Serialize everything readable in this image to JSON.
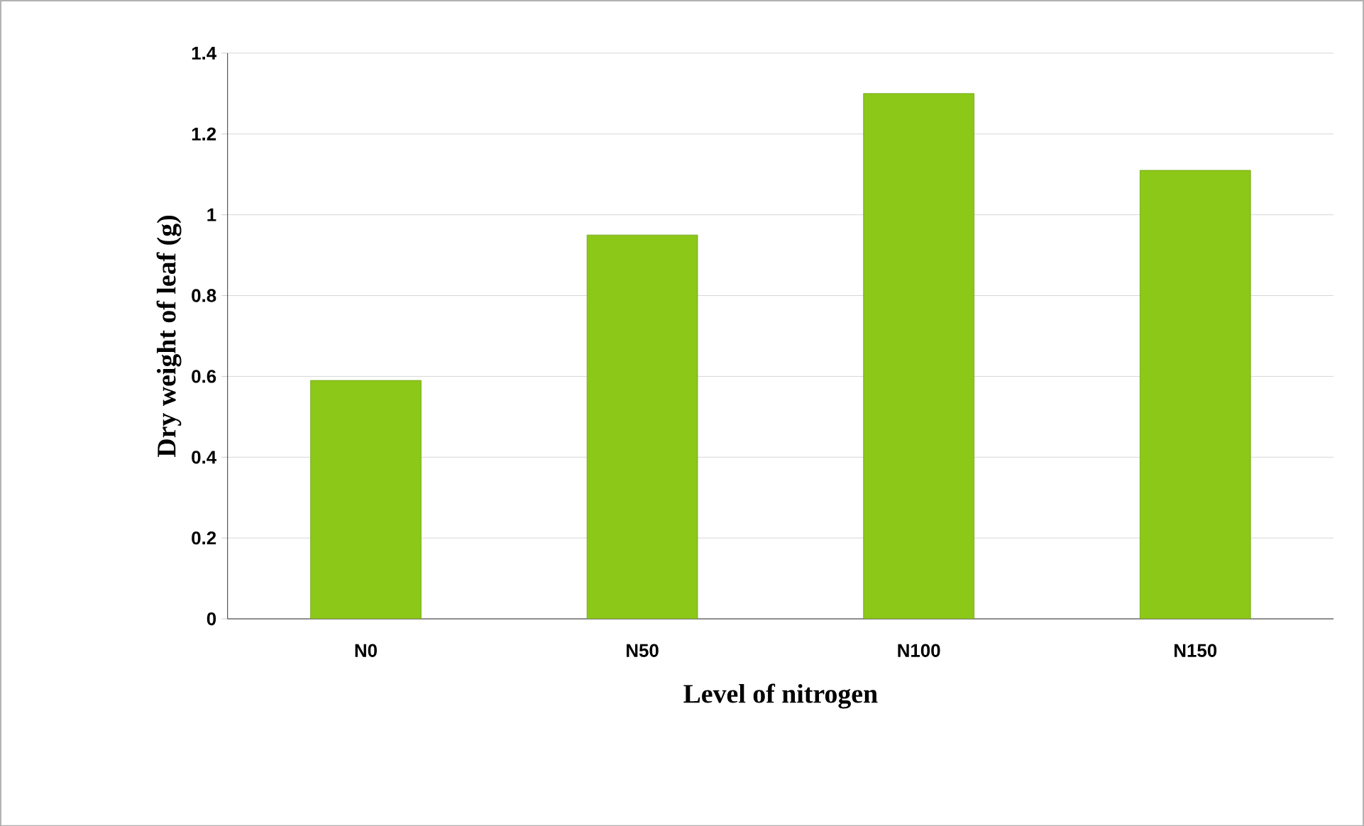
{
  "chart_data": {
    "type": "bar",
    "xlabel": "Level of nitrogen",
    "ylabel": "Dry weight of leaf (g)",
    "categories": [
      "N0",
      "N50",
      "N100",
      "N150"
    ],
    "values": [
      0.59,
      0.95,
      1.3,
      1.11
    ],
    "color": "#8cc818",
    "ylim": [
      0,
      1.4
    ],
    "yticks": [
      0,
      0.2,
      0.4,
      0.6,
      0.8,
      1,
      1.2,
      1.4
    ],
    "grid": "y"
  }
}
